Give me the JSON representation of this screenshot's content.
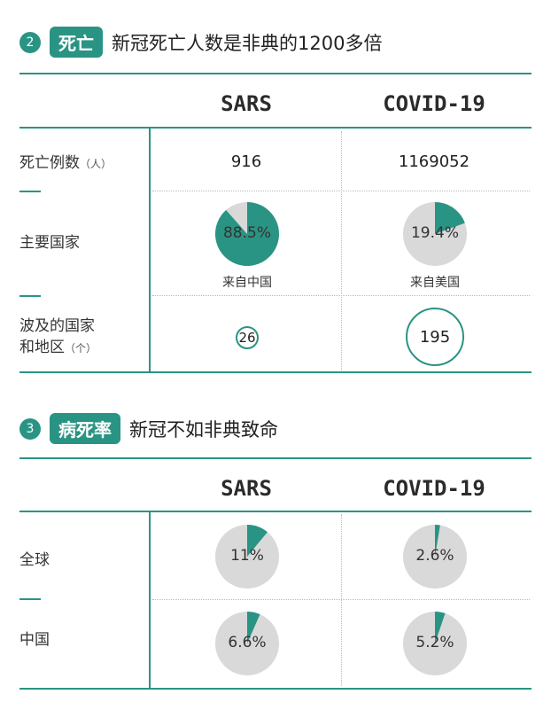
{
  "section2": {
    "number": "2",
    "tag": "死亡",
    "title": "新冠死亡人数是非典的1200多倍",
    "columns": [
      "SARS",
      "COVID-19"
    ],
    "rows": {
      "deaths": {
        "label": "死亡例数",
        "unit": "（人）",
        "sars": "916",
        "covid": "1169052"
      },
      "main_country": {
        "label": "主要国家",
        "sars_pct": "88.5%",
        "sars_value": 88.5,
        "sars_caption": "来自中国",
        "covid_pct": "19.4%",
        "covid_value": 19.4,
        "covid_caption": "来自美国"
      },
      "countries": {
        "label_line1": "波及的国家",
        "label_line2": "和地区",
        "unit": "（个）",
        "sars": "26",
        "covid": "195"
      }
    }
  },
  "section3": {
    "number": "3",
    "tag": "病死率",
    "title": "新冠不如非典致命",
    "columns": [
      "SARS",
      "COVID-19"
    ],
    "rows": {
      "global": {
        "label": "全球",
        "sars_pct": "11%",
        "sars_value": 11,
        "covid_pct": "2.6%",
        "covid_value": 2.6
      },
      "china": {
        "label": "中国",
        "sars_pct": "6.6%",
        "sars_value": 6.6,
        "covid_pct": "5.2%",
        "covid_value": 5.2
      }
    }
  },
  "colors": {
    "accent": "#2a9484",
    "pie_bg": "#d9d9d9",
    "pie_text": "#333333"
  }
}
